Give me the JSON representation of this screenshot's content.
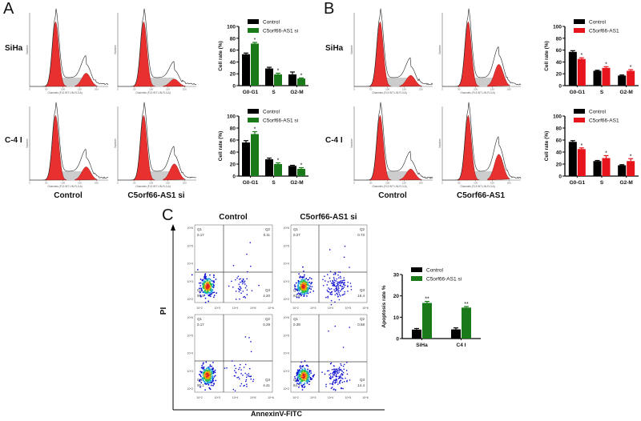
{
  "panels": {
    "a": "A",
    "b": "B",
    "c": "C"
  },
  "row_labels": {
    "siha": "SiHa",
    "c4i": "C-4 I"
  },
  "panel_a": {
    "col1": "Control",
    "col2": "C5orf66-AS1 si"
  },
  "panel_b": {
    "col1": "Control",
    "col2": "C5orf66-AS1"
  },
  "panel_c": {
    "col1": "Control",
    "col2": "C5orf66-AS1 si",
    "xlabel": "AnnexinV-FITC",
    "ylabel": "PI"
  },
  "histogram": {
    "xlabel": "Channels (FL3 INT LIN-FL3-A)",
    "ylabel": "Number",
    "xticks": [
      "0",
      "50",
      "100",
      "150",
      "200"
    ]
  },
  "colors": {
    "control": "#000000",
    "knockdown": "#1a7a1a",
    "overexpression": "#e8141b",
    "histogram_peak": "#e8302f"
  },
  "flow": {
    "xticks": [
      "10^2",
      "10^3",
      "10^4",
      "10^5",
      "10^6"
    ],
    "yticks": [
      "10^2",
      "10^3",
      "10^4",
      "10^5",
      "10^6"
    ],
    "plots": [
      {
        "name": "control-siha",
        "q1": "0.17",
        "q2": "0.11",
        "q3": "4.20",
        "q4": "95.5"
      },
      {
        "name": "si-siha",
        "q1": "0.27",
        "q2": "0.73",
        "q3": "16.4",
        "q4": "82.6"
      },
      {
        "name": "control-c4i",
        "q1": "0.17",
        "q2": "0.29",
        "q3": "4.41",
        "q4": "95.1"
      },
      {
        "name": "si-c4i",
        "q1": "0.39",
        "q2": "0.58",
        "q3": "14.4",
        "q4": "84.7"
      }
    ],
    "quadrant_names": [
      "Q1",
      "Q2",
      "Q3",
      "Q4"
    ]
  },
  "chart_data": [
    {
      "id": "a-siha",
      "type": "bar",
      "title": "",
      "ylabel": "Cell rate (%)",
      "ylim": [
        0,
        100
      ],
      "yticks": [
        "0",
        "20",
        "40",
        "60",
        "80",
        "100"
      ],
      "categories": [
        "G0-G1",
        "S",
        "G2-M"
      ],
      "series": [
        {
          "name": "Control",
          "values": [
            53,
            29,
            19
          ],
          "err": [
            2,
            2,
            4
          ]
        },
        {
          "name": "C5orf66-AS1 si",
          "values": [
            71,
            19,
            12
          ],
          "err": [
            2,
            2,
            1
          ],
          "sig": [
            "*",
            "*",
            "*"
          ]
        }
      ]
    },
    {
      "id": "a-c4i",
      "type": "bar",
      "title": "",
      "ylabel": "Cell rate (%)",
      "ylim": [
        0,
        100
      ],
      "yticks": [
        "0",
        "20",
        "40",
        "60",
        "80",
        "100"
      ],
      "categories": [
        "G0-G1",
        "S",
        "G2-M"
      ],
      "series": [
        {
          "name": "Control",
          "values": [
            56,
            28,
            17
          ],
          "err": [
            3,
            2,
            1
          ]
        },
        {
          "name": "C5orf66-AS1 si",
          "values": [
            70,
            20,
            12
          ],
          "err": [
            4,
            2,
            2
          ],
          "sig": [
            "*",
            "*",
            "*"
          ]
        }
      ]
    },
    {
      "id": "b-siha",
      "type": "bar",
      "title": "",
      "ylabel": "Cell rate (%)",
      "ylim": [
        0,
        100
      ],
      "yticks": [
        "0",
        "20",
        "40",
        "60",
        "80",
        "100"
      ],
      "categories": [
        "G0-G1",
        "S",
        "G2-M"
      ],
      "series": [
        {
          "name": "Control",
          "values": [
            57,
            25,
            17
          ],
          "err": [
            2,
            1,
            1
          ]
        },
        {
          "name": "C5orf66-AS1",
          "values": [
            45,
            30,
            25
          ],
          "err": [
            2,
            2,
            2
          ],
          "sig": [
            "*",
            "*",
            "*"
          ]
        }
      ]
    },
    {
      "id": "b-c4i",
      "type": "bar",
      "title": "",
      "ylabel": "Cell rate (%)",
      "ylim": [
        0,
        100
      ],
      "yticks": [
        "0",
        "20",
        "40",
        "60",
        "80",
        "100"
      ],
      "categories": [
        "G0-G1",
        "S",
        "G2-M"
      ],
      "series": [
        {
          "name": "Control",
          "values": [
            57,
            25,
            18
          ],
          "err": [
            2,
            1,
            1
          ]
        },
        {
          "name": "C5orf66-AS1",
          "values": [
            45,
            30,
            25
          ],
          "err": [
            2,
            4,
            4
          ],
          "sig": [
            "*",
            "*",
            "*"
          ]
        }
      ]
    },
    {
      "id": "c-apoptosis",
      "type": "bar",
      "title": "",
      "ylabel": "Apoptosis rate %",
      "ylim": [
        0,
        30
      ],
      "yticks": [
        "0",
        "10",
        "20",
        "30"
      ],
      "categories": [
        "SiHa",
        "C4 I"
      ],
      "series": [
        {
          "name": "Control",
          "values": [
            4.2,
            4.3
          ],
          "err": [
            0.5,
            0.7
          ]
        },
        {
          "name": "C5orf66-AS1 si",
          "values": [
            16.7,
            14.5
          ],
          "err": [
            0.7,
            0.5
          ],
          "sig": [
            "**",
            "**"
          ]
        }
      ]
    }
  ]
}
